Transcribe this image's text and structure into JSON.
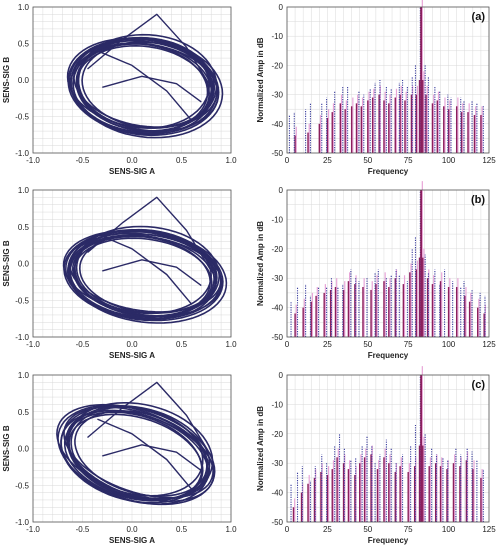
{
  "colors": {
    "phase": "#2b2a66",
    "spec_dotted": "#3b3f9e",
    "spec_solid": "#8b1f5c",
    "spec_pink": "#e8a6d8",
    "grid": "#d9d9d9"
  },
  "chart_data": [
    {
      "type": "line",
      "panel": "phase-1",
      "xlabel": "SENS-SIG A",
      "ylabel": "SENS-SIG B",
      "xlim": [
        -1.0,
        1.0
      ],
      "ylim": [
        -1.0,
        1.0
      ],
      "xticks": [
        "-1.0",
        "-0.5",
        "0.0",
        "0.5",
        "1.0"
      ],
      "yticks": [
        "1.0",
        "0.5",
        "0.0",
        "-0.5",
        "-1.0"
      ],
      "grid": true,
      "orbit": {
        "cx": 0.12,
        "cy": -0.08,
        "rx": 0.72,
        "ry": 0.6,
        "tilt_deg": -20,
        "loops": 14,
        "spread": 0.15
      }
    },
    {
      "type": "bar",
      "panel": "spectrum-a",
      "label": "(a)",
      "xlabel": "Frequency",
      "ylabel": "Normalized Amp in dB",
      "xlim": [
        0,
        125
      ],
      "ylim": [
        -50,
        0
      ],
      "xticks": [
        "0",
        "25",
        "50",
        "75",
        "100",
        "125"
      ],
      "yticks": [
        "0",
        "-10",
        "-20",
        "-30",
        "-40",
        "-50"
      ],
      "grid": true,
      "peak_x": 83,
      "dotted": [
        [
          2,
          -37
        ],
        [
          5,
          -36
        ],
        [
          12,
          -35
        ],
        [
          15,
          -33
        ],
        [
          22,
          -33
        ],
        [
          25,
          -31
        ],
        [
          30,
          -29
        ],
        [
          35,
          -27
        ],
        [
          38,
          -27
        ],
        [
          45,
          -29
        ],
        [
          48,
          -30
        ],
        [
          52,
          -28
        ],
        [
          55,
          -26
        ],
        [
          58,
          -25
        ],
        [
          62,
          -27
        ],
        [
          65,
          -28
        ],
        [
          70,
          -26
        ],
        [
          72,
          -25
        ],
        [
          75,
          -27
        ],
        [
          78,
          -24
        ],
        [
          80,
          -20
        ],
        [
          83,
          0
        ],
        [
          86,
          -20
        ],
        [
          88,
          -24
        ],
        [
          92,
          -27
        ],
        [
          95,
          -29
        ],
        [
          100,
          -30
        ],
        [
          102,
          -31
        ],
        [
          108,
          -31
        ],
        [
          110,
          -32
        ],
        [
          115,
          -32
        ],
        [
          118,
          -33
        ],
        [
          122,
          -34
        ]
      ],
      "solid": [
        [
          5,
          -44
        ],
        [
          13,
          -43
        ],
        [
          20,
          -40
        ],
        [
          25,
          -38
        ],
        [
          28,
          -36
        ],
        [
          33,
          -33
        ],
        [
          36,
          -35
        ],
        [
          40,
          -34
        ],
        [
          43,
          -33
        ],
        [
          46,
          -34
        ],
        [
          50,
          -32
        ],
        [
          53,
          -31
        ],
        [
          57,
          -30
        ],
        [
          60,
          -32
        ],
        [
          63,
          -33
        ],
        [
          67,
          -31
        ],
        [
          70,
          -30
        ],
        [
          73,
          -32
        ],
        [
          77,
          -30
        ],
        [
          80,
          -30
        ],
        [
          82,
          -25
        ],
        [
          83,
          0
        ],
        [
          84,
          -25
        ],
        [
          86,
          -30
        ],
        [
          90,
          -33
        ],
        [
          93,
          -32
        ],
        [
          97,
          -34
        ],
        [
          100,
          -35
        ],
        [
          105,
          -34
        ],
        [
          108,
          -36
        ],
        [
          112,
          -36
        ],
        [
          116,
          -37
        ],
        [
          120,
          -37
        ]
      ]
    },
    {
      "type": "line",
      "panel": "phase-2",
      "xlabel": "SENS-SIG A",
      "ylabel": "SENS-SIG B",
      "xlim": [
        -1.0,
        1.0
      ],
      "ylim": [
        -1.0,
        1.0
      ],
      "xticks": [
        "-1.0",
        "-0.5",
        "0.0",
        "0.5",
        "1.0"
      ],
      "yticks": [
        "1.0",
        "0.5",
        "0.0",
        "-0.5",
        "-1.0"
      ],
      "grid": true,
      "orbit": {
        "cx": 0.12,
        "cy": -0.15,
        "rx": 0.75,
        "ry": 0.55,
        "tilt_deg": -14,
        "loops": 14,
        "spread": 0.17
      }
    },
    {
      "type": "bar",
      "panel": "spectrum-b",
      "label": "(b)",
      "xlabel": "Frequency",
      "ylabel": "Normalized Amp in dB",
      "xlim": [
        0,
        125
      ],
      "ylim": [
        -50,
        0
      ],
      "xticks": [
        "0",
        "25",
        "50",
        "75",
        "100",
        "125"
      ],
      "yticks": [
        "0",
        "-10",
        "-20",
        "-30",
        "-40",
        "-50"
      ],
      "grid": true,
      "peak_x": 83,
      "dotted": [
        [
          3,
          -38
        ],
        [
          7,
          -33
        ],
        [
          12,
          -32
        ],
        [
          15,
          -36
        ],
        [
          20,
          -33
        ],
        [
          25,
          -33
        ],
        [
          28,
          -30
        ],
        [
          32,
          -33
        ],
        [
          35,
          -32
        ],
        [
          40,
          -27
        ],
        [
          43,
          -30
        ],
        [
          45,
          -31
        ],
        [
          50,
          -30
        ],
        [
          55,
          -28
        ],
        [
          57,
          -27
        ],
        [
          62,
          -30
        ],
        [
          65,
          -29
        ],
        [
          68,
          -27
        ],
        [
          70,
          -29
        ],
        [
          75,
          -31
        ],
        [
          78,
          -20
        ],
        [
          80,
          -16
        ],
        [
          83,
          0
        ],
        [
          86,
          -22
        ],
        [
          88,
          -28
        ],
        [
          92,
          -27
        ],
        [
          95,
          -32
        ],
        [
          98,
          -27
        ],
        [
          103,
          -31
        ],
        [
          108,
          -33
        ],
        [
          110,
          -31
        ],
        [
          115,
          -34
        ],
        [
          120,
          -35
        ],
        [
          123,
          -36
        ]
      ],
      "solid": [
        [
          5,
          -42
        ],
        [
          10,
          -40
        ],
        [
          15,
          -38
        ],
        [
          18,
          -36
        ],
        [
          23,
          -35
        ],
        [
          27,
          -34
        ],
        [
          30,
          -33
        ],
        [
          35,
          -34
        ],
        [
          38,
          -31
        ],
        [
          42,
          -32
        ],
        [
          47,
          -33
        ],
        [
          52,
          -34
        ],
        [
          55,
          -32
        ],
        [
          60,
          -31
        ],
        [
          63,
          -33
        ],
        [
          67,
          -30
        ],
        [
          72,
          -32
        ],
        [
          76,
          -28
        ],
        [
          80,
          -27
        ],
        [
          82,
          -23
        ],
        [
          83,
          0
        ],
        [
          84,
          -23
        ],
        [
          87,
          -30
        ],
        [
          90,
          -32
        ],
        [
          95,
          -31
        ],
        [
          100,
          -33
        ],
        [
          105,
          -33
        ],
        [
          110,
          -36
        ],
        [
          113,
          -38
        ],
        [
          118,
          -40
        ],
        [
          122,
          -42
        ]
      ]
    },
    {
      "type": "line",
      "panel": "phase-3",
      "xlabel": "SENS-SIG A",
      "ylabel": "SENS-SIG B",
      "xlim": [
        -1.0,
        1.0
      ],
      "ylim": [
        -1.0,
        1.0
      ],
      "xticks": [
        "-1.0",
        "-0.5",
        "0.0",
        "0.5",
        "1.0"
      ],
      "yticks": [
        "1.0",
        "0.5",
        "0.0",
        "-0.5",
        "-1.0"
      ],
      "grid": true,
      "orbit": {
        "cx": 0.05,
        "cy": -0.08,
        "rx": 0.78,
        "ry": 0.55,
        "tilt_deg": -32,
        "loops": 12,
        "spread": 0.2
      }
    },
    {
      "type": "bar",
      "panel": "spectrum-c",
      "label": "(c)",
      "xlabel": "Frequency",
      "ylabel": "Normalized Amp in dB",
      "xlim": [
        0,
        125
      ],
      "ylim": [
        -50,
        0
      ],
      "xticks": [
        "0",
        "25",
        "50",
        "75",
        "100",
        "125"
      ],
      "yticks": [
        "0",
        "-10",
        "-20",
        "-30",
        "-40",
        "-50"
      ],
      "grid": true,
      "peak_x": 83,
      "dotted": [
        [
          3,
          -37
        ],
        [
          7,
          -33
        ],
        [
          10,
          -31
        ],
        [
          15,
          -36
        ],
        [
          18,
          -31
        ],
        [
          22,
          -27
        ],
        [
          25,
          -30
        ],
        [
          30,
          -24
        ],
        [
          33,
          -20
        ],
        [
          36,
          -25
        ],
        [
          40,
          -29
        ],
        [
          43,
          -28
        ],
        [
          47,
          -24
        ],
        [
          50,
          -21
        ],
        [
          53,
          -24
        ],
        [
          55,
          -30
        ],
        [
          58,
          -27
        ],
        [
          62,
          -22
        ],
        [
          65,
          -25
        ],
        [
          68,
          -30
        ],
        [
          72,
          -27
        ],
        [
          77,
          -24
        ],
        [
          80,
          -17
        ],
        [
          83,
          0
        ],
        [
          86,
          -20
        ],
        [
          90,
          -25
        ],
        [
          93,
          -27
        ],
        [
          97,
          -28
        ],
        [
          100,
          -29
        ],
        [
          105,
          -25
        ],
        [
          108,
          -27
        ],
        [
          112,
          -25
        ],
        [
          115,
          -26
        ],
        [
          118,
          -29
        ],
        [
          122,
          -32
        ]
      ],
      "solid": [
        [
          4,
          -45
        ],
        [
          9,
          -40
        ],
        [
          13,
          -37
        ],
        [
          17,
          -35
        ],
        [
          21,
          -33
        ],
        [
          25,
          -34
        ],
        [
          28,
          -32
        ],
        [
          31,
          -28
        ],
        [
          35,
          -30
        ],
        [
          38,
          -32
        ],
        [
          42,
          -34
        ],
        [
          45,
          -30
        ],
        [
          48,
          -28
        ],
        [
          52,
          -27
        ],
        [
          56,
          -32
        ],
        [
          60,
          -28
        ],
        [
          63,
          -30
        ],
        [
          67,
          -33
        ],
        [
          70,
          -31
        ],
        [
          75,
          -33
        ],
        [
          79,
          -31
        ],
        [
          82,
          -24
        ],
        [
          83,
          0
        ],
        [
          84,
          -24
        ],
        [
          88,
          -31
        ],
        [
          92,
          -30
        ],
        [
          95,
          -31
        ],
        [
          99,
          -32
        ],
        [
          103,
          -30
        ],
        [
          107,
          -31
        ],
        [
          111,
          -29
        ],
        [
          115,
          -32
        ],
        [
          120,
          -35
        ]
      ]
    }
  ]
}
